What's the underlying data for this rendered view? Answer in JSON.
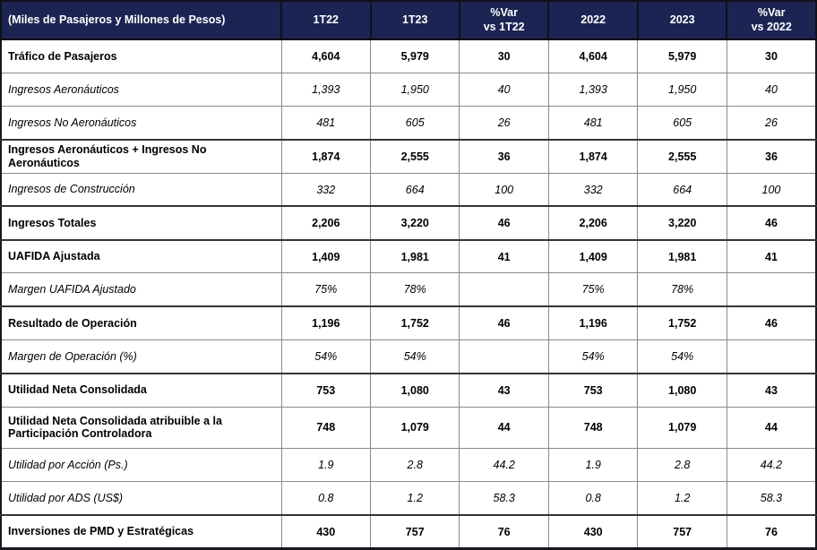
{
  "table": {
    "colors": {
      "header_bg": "#1B2452",
      "header_text": "#FFFFFF",
      "body_text": "#000000",
      "outer_border": "#17171D",
      "inner_border_light": "#8A8A8A",
      "inner_border_dark": "#333338"
    },
    "header": {
      "title": "(Miles de Pasajeros y Millones de Pesos)",
      "columns": [
        "1T22",
        "1T23",
        "%Var\nvs 1T22",
        "2022",
        "2023",
        "%Var\nvs 2022"
      ]
    },
    "rows": [
      {
        "label": "Tráfico de Pasajeros",
        "emphasis": "bold",
        "separator": "dark",
        "tall": false,
        "values": [
          "4,604",
          "5,979",
          "30",
          "4,604",
          "5,979",
          "30"
        ]
      },
      {
        "label": "Ingresos Aeronáuticos",
        "emphasis": "italic",
        "separator": "light",
        "tall": false,
        "values": [
          "1,393",
          "1,950",
          "40",
          "1,393",
          "1,950",
          "40"
        ]
      },
      {
        "label": "Ingresos No Aeronáuticos",
        "emphasis": "italic",
        "separator": "light",
        "tall": false,
        "values": [
          "481",
          "605",
          "26",
          "481",
          "605",
          "26"
        ]
      },
      {
        "label": "Ingresos Aeronáuticos + Ingresos No Aeronáuticos",
        "emphasis": "bold",
        "separator": "dark",
        "tall": false,
        "values": [
          "1,874",
          "2,555",
          "36",
          "1,874",
          "2,555",
          "36"
        ]
      },
      {
        "label": "Ingresos de Construcción",
        "emphasis": "italic",
        "separator": "light",
        "tall": false,
        "values": [
          "332",
          "664",
          "100",
          "332",
          "664",
          "100"
        ]
      },
      {
        "label": "Ingresos Totales",
        "emphasis": "bold",
        "separator": "dark",
        "tall": false,
        "values": [
          "2,206",
          "3,220",
          "46",
          "2,206",
          "3,220",
          "46"
        ]
      },
      {
        "label": "UAFIDA Ajustada",
        "emphasis": "bold",
        "separator": "dark",
        "tall": false,
        "values": [
          "1,409",
          "1,981",
          "41",
          "1,409",
          "1,981",
          "41"
        ]
      },
      {
        "label": "Margen UAFIDA Ajustado",
        "emphasis": "italic",
        "separator": "light",
        "tall": false,
        "values": [
          "75%",
          "78%",
          "",
          "75%",
          "78%",
          ""
        ]
      },
      {
        "label": "Resultado de Operación",
        "emphasis": "bold",
        "separator": "dark",
        "tall": false,
        "values": [
          "1,196",
          "1,752",
          "46",
          "1,196",
          "1,752",
          "46"
        ]
      },
      {
        "label": "Margen de Operación (%)",
        "emphasis": "italic",
        "separator": "light",
        "tall": false,
        "values": [
          "54%",
          "54%",
          "",
          "54%",
          "54%",
          ""
        ]
      },
      {
        "label": "Utilidad Neta Consolidada",
        "emphasis": "bold",
        "separator": "dark",
        "tall": false,
        "values": [
          "753",
          "1,080",
          "43",
          "753",
          "1,080",
          "43"
        ]
      },
      {
        "label": "Utilidad Neta Consolidada atribuible a la Participación Controladora",
        "emphasis": "bold",
        "separator": "light",
        "tall": true,
        "values": [
          "748",
          "1,079",
          "44",
          "748",
          "1,079",
          "44"
        ]
      },
      {
        "label": "Utilidad por Acción (Ps.)",
        "emphasis": "italic",
        "separator": "light",
        "tall": false,
        "values": [
          "1.9",
          "2.8",
          "44.2",
          "1.9",
          "2.8",
          "44.2"
        ]
      },
      {
        "label": "Utilidad por ADS (US$)",
        "emphasis": "italic",
        "separator": "light",
        "tall": false,
        "values": [
          "0.8",
          "1.2",
          "58.3",
          "0.8",
          "1.2",
          "58.3"
        ]
      },
      {
        "label": "Inversiones de PMD y Estratégicas",
        "emphasis": "bold",
        "separator": "dark",
        "tall": false,
        "values": [
          "430",
          "757",
          "76",
          "430",
          "757",
          "76"
        ]
      }
    ]
  }
}
